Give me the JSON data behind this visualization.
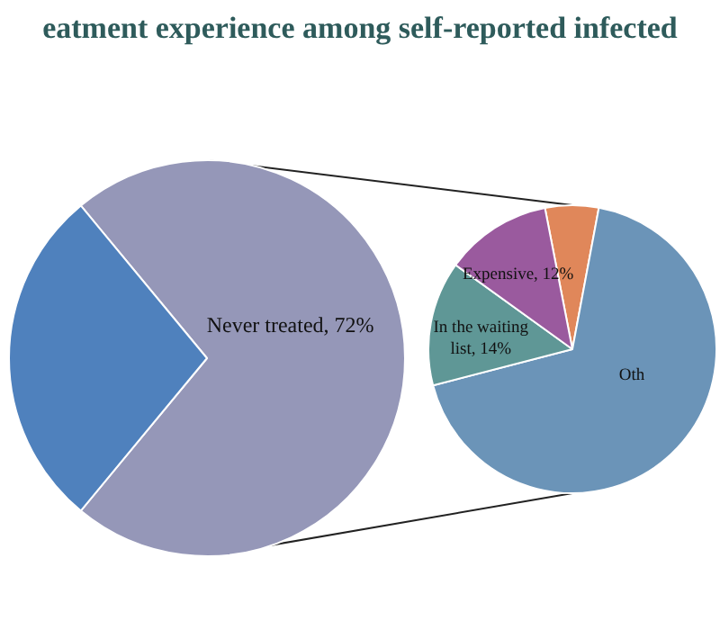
{
  "chart_data": [
    {
      "type": "pie",
      "title": "eatment experience among self-reported infected",
      "categories": [
        "Never treated",
        null
      ],
      "values": [
        72,
        28
      ],
      "colors": [
        "#9597b8",
        "#4f81bd"
      ],
      "value_labels": [
        "72%",
        null
      ]
    },
    {
      "type": "pie",
      "categories": [
        null,
        "Oth",
        "In the waiting list",
        "Expensive"
      ],
      "values": [
        6,
        68,
        14,
        12
      ],
      "colors": [
        "#e0875a",
        "#6b94b8",
        "#5f9796",
        "#9a5a9e"
      ],
      "value_labels": [
        null,
        null,
        "14%",
        "12%"
      ]
    }
  ]
}
